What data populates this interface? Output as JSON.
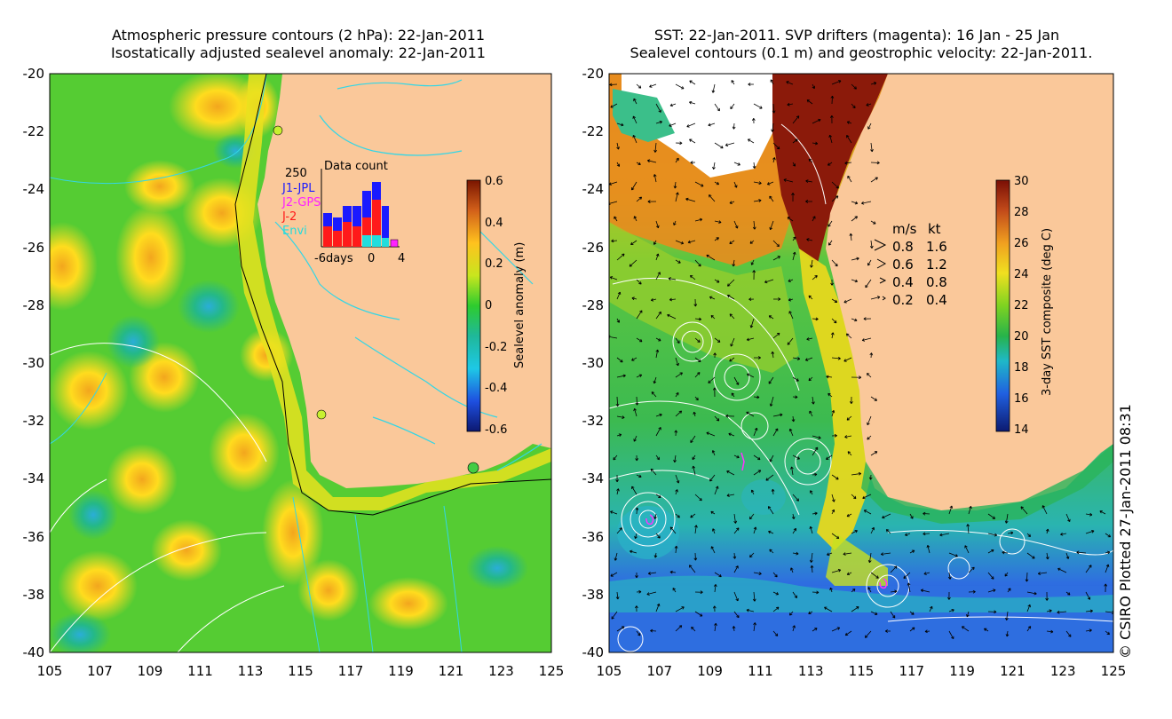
{
  "left_panel": {
    "title_line1": "Atmospheric pressure contours (2 hPa): 22-Jan-2011",
    "title_line2": "Isostatically adjusted sealevel anomaly: 22-Jan-2011",
    "y_ticks": [
      "-20",
      "-22",
      "-24",
      "-26",
      "-28",
      "-30",
      "-32",
      "-34",
      "-36",
      "-38",
      "-40"
    ],
    "x_ticks": [
      "105",
      "107",
      "109",
      "111",
      "113",
      "115",
      "117",
      "119",
      "121",
      "123",
      "125"
    ],
    "colorbar": {
      "label": "Sealevel anomaly (m)",
      "ticks": [
        "0.6",
        "0.4",
        "0.2",
        "0",
        "-0.2",
        "-0.4",
        "-0.6"
      ]
    },
    "inset": {
      "title": "Data count",
      "max_label": "250",
      "x_labels": [
        "-6days",
        "0",
        "4"
      ],
      "missions": [
        {
          "name": "J1-JPL",
          "color": "#1a1aff"
        },
        {
          "name": "J2-GPS",
          "color": "#ff22ff"
        },
        {
          "name": "J-2",
          "color": "#ff1a1a"
        },
        {
          "name": "Envi",
          "color": "#22dddd"
        }
      ]
    }
  },
  "right_panel": {
    "title_line1": "SST: 22-Jan-2011. SVP drifters (magenta): 16 Jan - 25 Jan",
    "title_line2": "Sealevel contours (0.1 m) and geostrophic velocity: 22-Jan-2011.",
    "y_ticks": [
      "-20",
      "-22",
      "-24",
      "-26",
      "-28",
      "-30",
      "-32",
      "-34",
      "-36",
      "-38",
      "-40"
    ],
    "x_ticks": [
      "105",
      "107",
      "109",
      "111",
      "113",
      "115",
      "117",
      "119",
      "121",
      "123",
      "125"
    ],
    "colorbar": {
      "label": "3-day SST composite (deg C)",
      "ticks": [
        "30",
        "28",
        "26",
        "24",
        "22",
        "20",
        "18",
        "16",
        "14"
      ]
    },
    "velocity_key": {
      "header_ms": "m/s",
      "header_kt": "kt",
      "rows": [
        {
          "ms": "0.8",
          "kt": "1.6"
        },
        {
          "ms": "0.6",
          "kt": "1.2"
        },
        {
          "ms": "0.4",
          "kt": "0.8"
        },
        {
          "ms": "0.2",
          "kt": "0.4"
        }
      ]
    }
  },
  "copyright": "© CSIRO Plotted 27-Jan-2011 08:31",
  "colors": {
    "land": "#fac89a",
    "sla_green": "#33cc33",
    "sla_yellow": "#ffd21e",
    "sst_green": "#44bb44",
    "sst_blue": "#1f4fd8",
    "sst_red": "#8b1a0a"
  }
}
